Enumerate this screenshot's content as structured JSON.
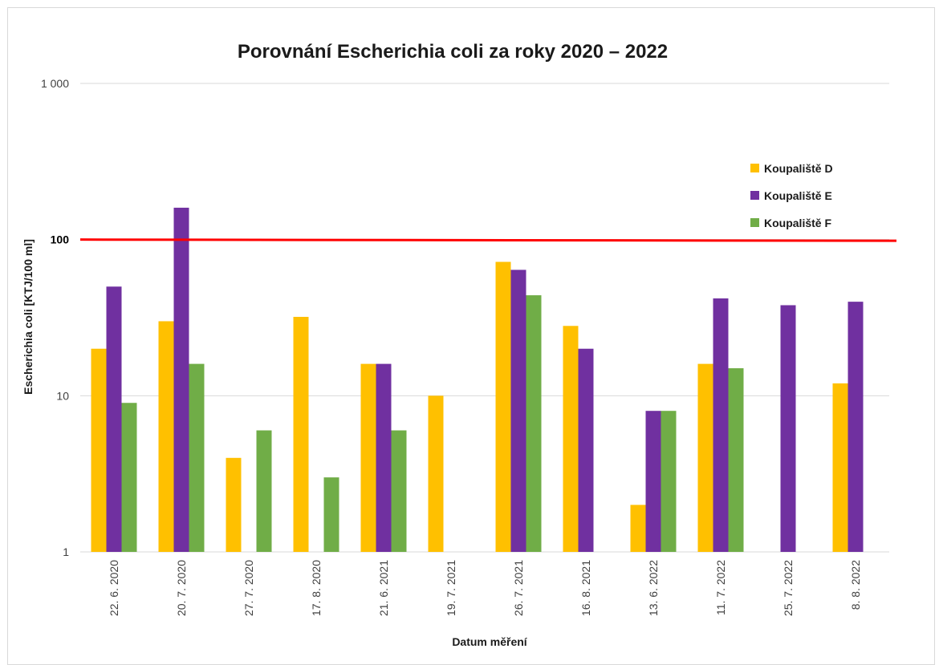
{
  "chart_data": {
    "type": "bar",
    "title": "Porovnání Escherichia coli za roky 2020 – 2022",
    "xlabel": "Datum měření",
    "ylabel": "Escherichia coli  [KTJ/100 ml]",
    "y_scale": "log",
    "ylim": [
      1,
      1000
    ],
    "y_ticks": [
      "1",
      "10",
      "100",
      "1 000"
    ],
    "categories": [
      "22. 6. 2020",
      "20. 7. 2020",
      "27. 7. 2020",
      "17. 8. 2020",
      "21. 6. 2021",
      "19. 7. 2021",
      "26. 7. 2021",
      "16. 8. 2021",
      "13. 6. 2022",
      "11. 7. 2022",
      "25. 7. 2022",
      "8. 8. 2022"
    ],
    "series": [
      {
        "name": "Koupaliště D",
        "color": "#ffc000",
        "values": [
          20,
          30,
          4,
          32,
          16,
          10,
          72,
          28,
          2,
          16,
          null,
          12
        ]
      },
      {
        "name": "Koupaliště E",
        "color": "#7030a0",
        "values": [
          50,
          160,
          null,
          null,
          16,
          null,
          64,
          20,
          8,
          42,
          38,
          40
        ]
      },
      {
        "name": "Koupaliště F",
        "color": "#70ad47",
        "values": [
          9,
          16,
          6,
          3,
          6,
          null,
          44,
          null,
          8,
          15,
          null,
          null
        ]
      }
    ],
    "reference_line": {
      "value": 100,
      "color": "#ff0000"
    },
    "grid": true,
    "legend_position": "top-right"
  }
}
